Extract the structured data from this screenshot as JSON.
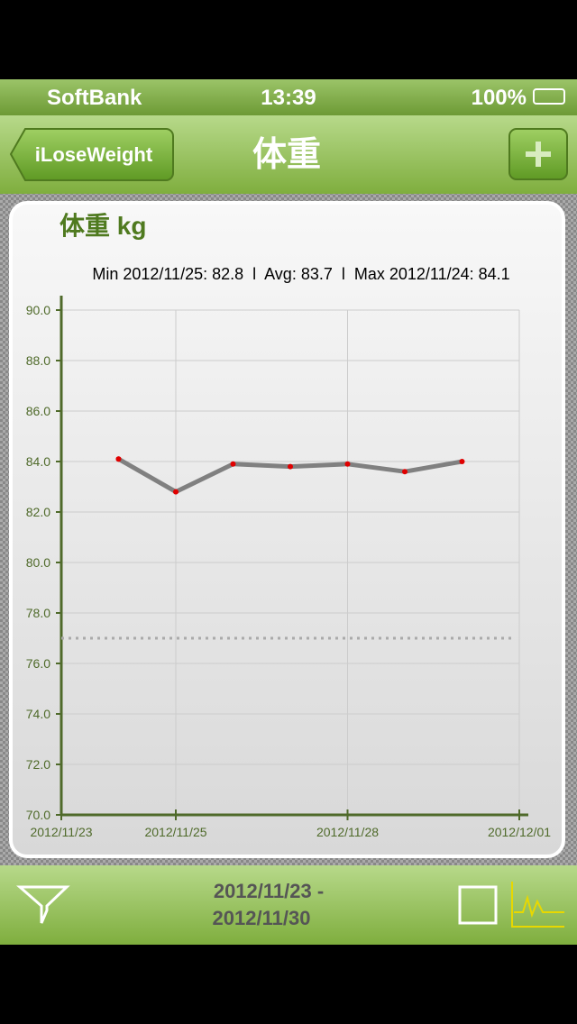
{
  "status_bar": {
    "carrier": "SoftBank",
    "time": "13:39",
    "battery": "100%"
  },
  "nav_bar": {
    "back_button": "iLoseWeight",
    "title": "体重"
  },
  "chart_data": {
    "type": "line",
    "title": "体重 kg",
    "subtitle": "Min 2012/11/25: 82.8  l  Avg: 83.7  l  Max 2012/11/24: 84.1",
    "x": [
      "2012/11/24",
      "2012/11/24",
      "2012/11/25",
      "2012/11/26",
      "2012/11/27",
      "2012/11/28",
      "2012/11/29",
      "2012/11/30"
    ],
    "values": [
      84.1,
      84.1,
      82.8,
      83.9,
      83.8,
      83.9,
      83.6,
      84.0
    ],
    "color": "#808080",
    "marker_color": "#e00000",
    "xlim": [
      "2012/11/23",
      "2012/12/01"
    ],
    "xticks": [
      "2012/11/23",
      "2012/11/25",
      "2012/11/28",
      "2012/12/01"
    ],
    "ylim": [
      70,
      90
    ],
    "yticks": [
      {
        "value": 70,
        "label": "70.0"
      },
      {
        "value": 72,
        "label": "72.0"
      },
      {
        "value": 74,
        "label": "74.0"
      },
      {
        "value": 76,
        "label": "76.0"
      },
      {
        "value": 78,
        "label": "78.0"
      },
      {
        "value": 80,
        "label": "80.0"
      },
      {
        "value": 82,
        "label": "82.0"
      },
      {
        "value": 84,
        "label": "84.0"
      },
      {
        "value": 86,
        "label": "86.0"
      },
      {
        "value": 88,
        "label": "88.0"
      },
      {
        "value": 90,
        "label": "90.0"
      }
    ],
    "target_line": 77,
    "grid": true
  },
  "toolbar": {
    "date_range_start": "2012/11/23 -",
    "date_range_end": "2012/11/30"
  }
}
